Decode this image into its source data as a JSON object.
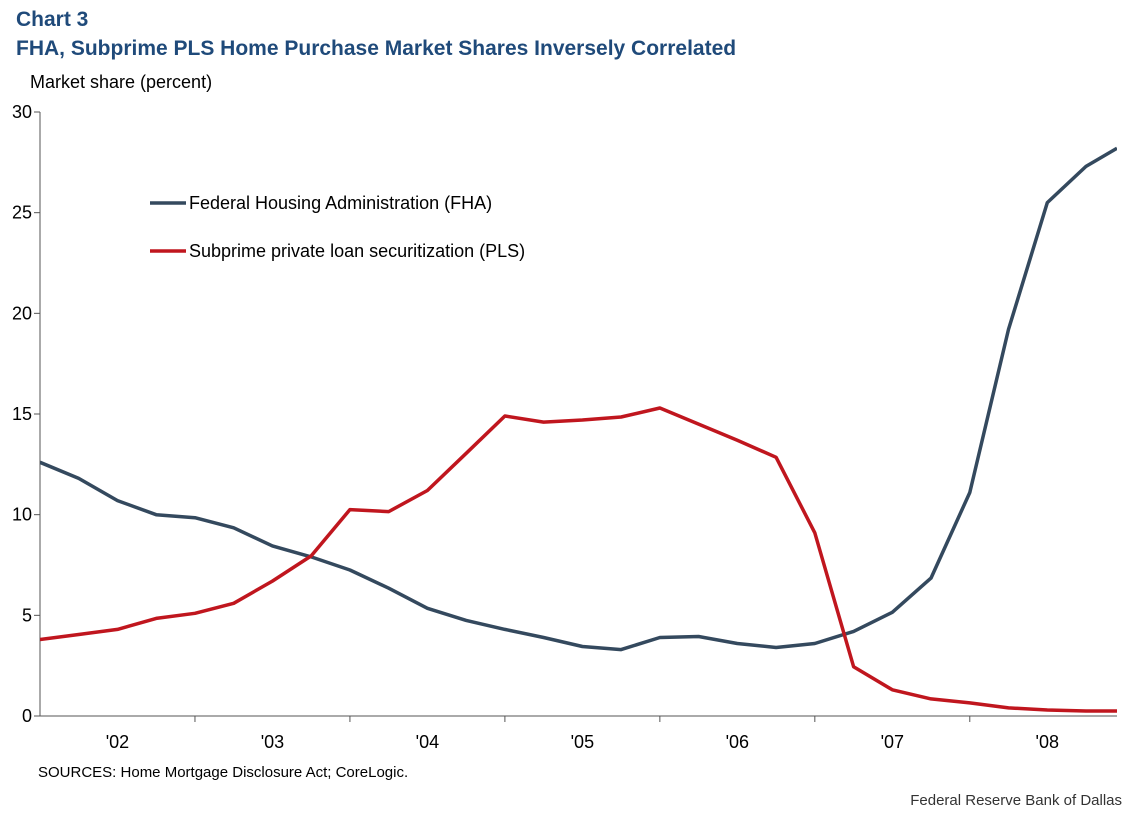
{
  "chart_label": "Chart 3",
  "title": "FHA, Subprime PLS Home Purchase Market Shares Inversely Correlated",
  "sources": "SOURCES: Home Mortgage Disclosure Act; CoreLogic.",
  "credit": "Federal Reserve  Bank of Dallas",
  "chart_data": {
    "type": "line",
    "title": "FHA, Subprime PLS Home Purchase Market Shares Inversely Correlated",
    "xlabel": "",
    "ylabel": "Market share (percent)",
    "ylim": [
      0,
      30
    ],
    "yticks": [
      0,
      5,
      10,
      15,
      20,
      25,
      30
    ],
    "xlim": [
      2001.5,
      2008.45
    ],
    "xticks": [
      {
        "value": 2002,
        "label": "'02"
      },
      {
        "value": 2003,
        "label": "'03"
      },
      {
        "value": 2004,
        "label": "'04"
      },
      {
        "value": 2005,
        "label": "'05"
      },
      {
        "value": 2006,
        "label": "'06"
      },
      {
        "value": 2007,
        "label": "'07"
      },
      {
        "value": 2008,
        "label": "'08"
      }
    ],
    "x": [
      2001.5,
      2001.75,
      2002.0,
      2002.25,
      2002.5,
      2002.75,
      2003.0,
      2003.25,
      2003.5,
      2003.75,
      2004.0,
      2004.25,
      2004.5,
      2004.75,
      2005.0,
      2005.25,
      2005.5,
      2005.75,
      2006.0,
      2006.25,
      2006.5,
      2006.75,
      2007.0,
      2007.25,
      2007.5,
      2007.75,
      2008.0,
      2008.25,
      2008.45
    ],
    "grid": false,
    "legend_position": "top-left",
    "series": [
      {
        "name": "Federal Housing Administration (FHA)",
        "color": "#34495e",
        "values": [
          12.6,
          11.8,
          10.7,
          10.0,
          9.85,
          9.35,
          8.45,
          7.9,
          7.25,
          6.35,
          5.35,
          4.75,
          4.3,
          3.9,
          3.45,
          3.3,
          3.9,
          3.95,
          3.6,
          3.4,
          3.6,
          4.2,
          5.15,
          6.85,
          11.1,
          19.2,
          25.5,
          27.3,
          28.2
        ]
      },
      {
        "name": "Subprime private loan securitization (PLS)",
        "color": "#c0161e",
        "values": [
          3.8,
          4.05,
          4.3,
          4.85,
          5.1,
          5.6,
          6.7,
          7.95,
          10.25,
          10.15,
          11.2,
          13.05,
          14.9,
          14.6,
          14.7,
          14.85,
          15.3,
          14.5,
          13.7,
          12.85,
          9.1,
          2.45,
          1.3,
          0.85,
          0.65,
          0.4,
          0.3,
          0.25,
          0.25
        ]
      }
    ]
  }
}
